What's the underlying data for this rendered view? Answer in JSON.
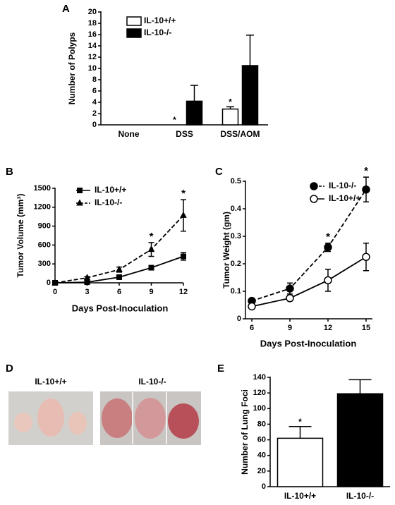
{
  "chart_data": [
    {
      "panel": "A",
      "type": "bar",
      "ylabel": "Number of Polyps",
      "categories": [
        "None",
        "DSS",
        "DSS/AOM"
      ],
      "series": [
        {
          "name": "IL-10+/+",
          "color": "#ffffff",
          "values": [
            0,
            0,
            2.8
          ],
          "errors": [
            0,
            0,
            0.4
          ],
          "markers": [
            null,
            "*",
            "*"
          ]
        },
        {
          "name": "IL-10-/-",
          "color": "#000000",
          "values": [
            0,
            4.2,
            10.5
          ],
          "errors": [
            0,
            2.8,
            5.4
          ]
        }
      ],
      "ylim": [
        0,
        20
      ],
      "yticks": [
        0,
        2,
        4,
        6,
        8,
        10,
        12,
        14,
        16,
        18,
        20
      ]
    },
    {
      "panel": "B",
      "type": "line",
      "ylabel": "Tumor Volume (mm³)",
      "xlabel": "Days Post-Inoculation",
      "x": [
        0,
        3,
        6,
        9,
        12
      ],
      "series": [
        {
          "name": "IL-10+/+",
          "color": "#000000",
          "marker": "square",
          "dashed": false,
          "values": [
            0,
            10,
            90,
            240,
            420
          ],
          "errors": [
            0,
            5,
            20,
            30,
            60
          ]
        },
        {
          "name": "IL-10-/-",
          "color": "#000000",
          "marker": "triangle",
          "dashed": true,
          "values": [
            0,
            80,
            210,
            530,
            1070
          ],
          "errors": [
            0,
            20,
            40,
            110,
            250
          ],
          "markers": [
            null,
            null,
            null,
            "*",
            "*"
          ]
        }
      ],
      "xlim": [
        0,
        12
      ],
      "xticks": [
        0,
        3,
        6,
        9,
        12
      ],
      "ylim": [
        0,
        1500
      ],
      "yticks": [
        0,
        300,
        600,
        900,
        1200,
        1500
      ]
    },
    {
      "panel": "C",
      "type": "line",
      "ylabel": "Tumor Weight (gm)",
      "xlabel": "Days Post-Inoculation",
      "x": [
        6,
        9,
        12,
        15
      ],
      "series": [
        {
          "name": "IL-10-/-",
          "color": "#000000",
          "marker": "circle",
          "fill": "#000000",
          "dashed": true,
          "values": [
            0.065,
            0.11,
            0.26,
            0.47
          ],
          "errors": [
            0.01,
            0.02,
            0.015,
            0.045
          ],
          "markers": [
            null,
            null,
            "*",
            "*"
          ]
        },
        {
          "name": "IL-10+/+",
          "color": "#000000",
          "marker": "circle",
          "fill": "#ffffff",
          "dashed": false,
          "values": [
            0.045,
            0.075,
            0.14,
            0.225
          ],
          "errors": [
            0.005,
            0.01,
            0.04,
            0.05
          ]
        }
      ],
      "xlim": [
        5.5,
        15.5
      ],
      "xticks": [
        6,
        9,
        12,
        15
      ],
      "ylim": [
        0,
        0.5
      ],
      "yticks": [
        0,
        0.1,
        0.2,
        0.3,
        0.4,
        0.5
      ]
    },
    {
      "panel": "E",
      "type": "bar",
      "ylabel": "Number of Lung Foci",
      "categories": [
        "IL-10+/+",
        "IL-10-/-"
      ],
      "values": [
        62,
        119
      ],
      "errors": [
        15,
        18
      ],
      "colors": [
        "#ffffff",
        "#000000"
      ],
      "markers": [
        "*",
        null
      ],
      "ylim": [
        0,
        140
      ],
      "yticks": [
        0,
        20,
        40,
        60,
        80,
        100,
        120,
        140
      ]
    }
  ],
  "photos": {
    "panel": "D",
    "labels": [
      "IL-10+/+",
      "IL-10-/-"
    ]
  }
}
